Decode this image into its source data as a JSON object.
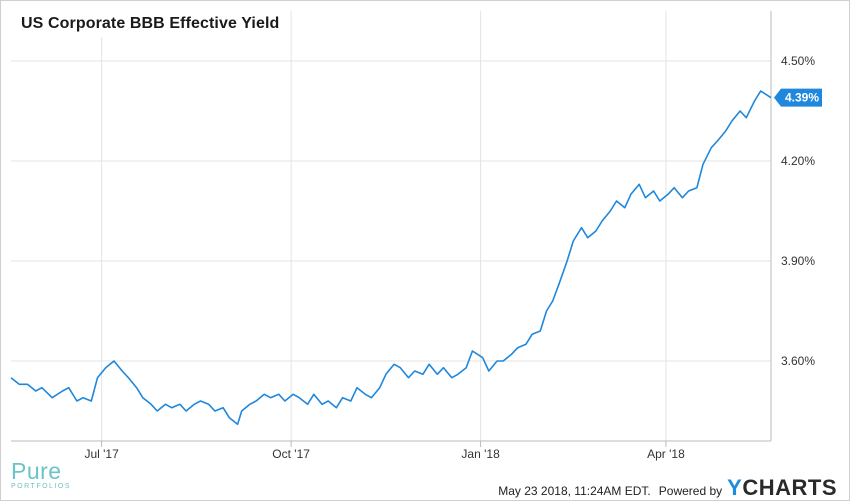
{
  "chart_data": {
    "type": "line",
    "title": "US Corporate BBB Effective Yield",
    "x_ticks": [
      "Jul '17",
      "Oct '17",
      "Jan '18",
      "Apr '18"
    ],
    "x_tick_dates": [
      "2017-07-01",
      "2017-10-01",
      "2018-01-01",
      "2018-04-01"
    ],
    "y_ticks": [
      "3.60%",
      "3.90%",
      "4.20%",
      "4.50%"
    ],
    "y_tick_values": [
      3.6,
      3.9,
      4.2,
      4.5
    ],
    "x_range": [
      "2017-05-18",
      "2018-05-22"
    ],
    "ylim": [
      3.36,
      4.65
    ],
    "grid": true,
    "last_value_label": "4.39%",
    "color": "#1f87dc",
    "series": [
      {
        "values": [
          [
            "2017-05-18",
            3.55
          ],
          [
            "2017-05-22",
            3.53
          ],
          [
            "2017-05-26",
            3.53
          ],
          [
            "2017-05-30",
            3.51
          ],
          [
            "2017-06-02",
            3.52
          ],
          [
            "2017-06-07",
            3.49
          ],
          [
            "2017-06-12",
            3.51
          ],
          [
            "2017-06-15",
            3.52
          ],
          [
            "2017-06-19",
            3.48
          ],
          [
            "2017-06-22",
            3.49
          ],
          [
            "2017-06-26",
            3.48
          ],
          [
            "2017-06-29",
            3.55
          ],
          [
            "2017-07-03",
            3.58
          ],
          [
            "2017-07-07",
            3.6
          ],
          [
            "2017-07-11",
            3.57
          ],
          [
            "2017-07-14",
            3.55
          ],
          [
            "2017-07-18",
            3.52
          ],
          [
            "2017-07-21",
            3.49
          ],
          [
            "2017-07-25",
            3.47
          ],
          [
            "2017-07-28",
            3.45
          ],
          [
            "2017-08-01",
            3.47
          ],
          [
            "2017-08-04",
            3.46
          ],
          [
            "2017-08-08",
            3.47
          ],
          [
            "2017-08-11",
            3.45
          ],
          [
            "2017-08-15",
            3.47
          ],
          [
            "2017-08-18",
            3.48
          ],
          [
            "2017-08-22",
            3.47
          ],
          [
            "2017-08-25",
            3.45
          ],
          [
            "2017-08-29",
            3.46
          ],
          [
            "2017-09-01",
            3.43
          ],
          [
            "2017-09-05",
            3.41
          ],
          [
            "2017-09-07",
            3.45
          ],
          [
            "2017-09-11",
            3.47
          ],
          [
            "2017-09-14",
            3.48
          ],
          [
            "2017-09-18",
            3.5
          ],
          [
            "2017-09-21",
            3.49
          ],
          [
            "2017-09-25",
            3.5
          ],
          [
            "2017-09-28",
            3.48
          ],
          [
            "2017-10-02",
            3.5
          ],
          [
            "2017-10-05",
            3.49
          ],
          [
            "2017-10-09",
            3.47
          ],
          [
            "2017-10-12",
            3.5
          ],
          [
            "2017-10-16",
            3.47
          ],
          [
            "2017-10-19",
            3.48
          ],
          [
            "2017-10-23",
            3.46
          ],
          [
            "2017-10-26",
            3.49
          ],
          [
            "2017-10-30",
            3.48
          ],
          [
            "2017-11-02",
            3.52
          ],
          [
            "2017-11-06",
            3.5
          ],
          [
            "2017-11-09",
            3.49
          ],
          [
            "2017-11-13",
            3.52
          ],
          [
            "2017-11-16",
            3.56
          ],
          [
            "2017-11-20",
            3.59
          ],
          [
            "2017-11-23",
            3.58
          ],
          [
            "2017-11-27",
            3.55
          ],
          [
            "2017-11-30",
            3.57
          ],
          [
            "2017-12-04",
            3.56
          ],
          [
            "2017-12-07",
            3.59
          ],
          [
            "2017-12-11",
            3.56
          ],
          [
            "2017-12-14",
            3.58
          ],
          [
            "2017-12-18",
            3.55
          ],
          [
            "2017-12-21",
            3.56
          ],
          [
            "2017-12-25",
            3.58
          ],
          [
            "2017-12-28",
            3.63
          ],
          [
            "2018-01-02",
            3.61
          ],
          [
            "2018-01-05",
            3.57
          ],
          [
            "2018-01-09",
            3.6
          ],
          [
            "2018-01-12",
            3.6
          ],
          [
            "2018-01-16",
            3.62
          ],
          [
            "2018-01-19",
            3.64
          ],
          [
            "2018-01-23",
            3.65
          ],
          [
            "2018-01-26",
            3.68
          ],
          [
            "2018-01-30",
            3.69
          ],
          [
            "2018-02-02",
            3.75
          ],
          [
            "2018-02-05",
            3.78
          ],
          [
            "2018-02-08",
            3.83
          ],
          [
            "2018-02-12",
            3.9
          ],
          [
            "2018-02-15",
            3.96
          ],
          [
            "2018-02-19",
            4.0
          ],
          [
            "2018-02-22",
            3.97
          ],
          [
            "2018-02-26",
            3.99
          ],
          [
            "2018-03-01",
            4.02
          ],
          [
            "2018-03-05",
            4.05
          ],
          [
            "2018-03-08",
            4.08
          ],
          [
            "2018-03-12",
            4.06
          ],
          [
            "2018-03-15",
            4.1
          ],
          [
            "2018-03-19",
            4.13
          ],
          [
            "2018-03-22",
            4.09
          ],
          [
            "2018-03-26",
            4.11
          ],
          [
            "2018-03-29",
            4.08
          ],
          [
            "2018-04-02",
            4.1
          ],
          [
            "2018-04-05",
            4.12
          ],
          [
            "2018-04-09",
            4.09
          ],
          [
            "2018-04-12",
            4.11
          ],
          [
            "2018-04-16",
            4.12
          ],
          [
            "2018-04-19",
            4.19
          ],
          [
            "2018-04-23",
            4.24
          ],
          [
            "2018-04-26",
            4.26
          ],
          [
            "2018-04-30",
            4.29
          ],
          [
            "2018-05-03",
            4.32
          ],
          [
            "2018-05-07",
            4.35
          ],
          [
            "2018-05-10",
            4.33
          ],
          [
            "2018-05-14",
            4.38
          ],
          [
            "2018-05-17",
            4.41
          ],
          [
            "2018-05-22",
            4.39
          ]
        ]
      }
    ]
  },
  "footer": {
    "logo_word": "Pure",
    "logo_sub": "PORTFOLIOS",
    "timestamp": "May 23 2018, 11:24AM EDT.",
    "powered_by": "Powered by",
    "brand_y": "Y",
    "brand_rest": "CHARTS"
  }
}
